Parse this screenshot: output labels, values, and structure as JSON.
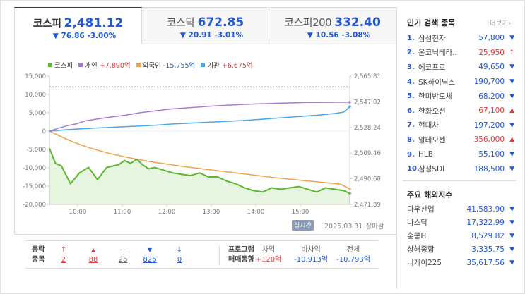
{
  "tabs": [
    {
      "name": "코스피",
      "value": "2,481.12",
      "change": "▼ 76.86 -3.00%"
    },
    {
      "name": "코스닥",
      "value": "672.85",
      "change": "▼ 20.91 -3.01%"
    },
    {
      "name": "코스피200",
      "value": "332.40",
      "change": "▼ 10.56 -3.08%"
    }
  ],
  "legend": [
    {
      "name": "코스피",
      "amount": "",
      "color": "#5cb82e"
    },
    {
      "name": "개인",
      "amount": "+7,890억",
      "color": "#a87bd0"
    },
    {
      "name": "외국인",
      "amount": "-15,755억",
      "color": "#f0a04b"
    },
    {
      "name": "기관",
      "amount": "+6,675억",
      "color": "#49a6e8"
    }
  ],
  "chart_data": {
    "type": "line",
    "x_labels": [
      "10:00",
      "11:00",
      "12:00",
      "13:00",
      "14:00",
      "15:00"
    ],
    "left_axis_ticks": [
      "15,000",
      "10,000",
      "5,000",
      "0",
      "-5,000",
      "-10,000",
      "-15,000",
      "-20,000"
    ],
    "right_axis_ticks": [
      "2,565.81",
      "2,547.02",
      "2,528.24",
      "2,509.46",
      "2,490.68",
      "2,471.89"
    ],
    "left_ylim": [
      -20000,
      15000
    ],
    "right_ylim": [
      2471.89,
      2565.81
    ],
    "reference_line": 2557.98,
    "series": [
      {
        "name": "개인",
        "color": "#a87bd0",
        "axis": "left",
        "x": [
          0,
          0.03,
          0.06,
          0.09,
          0.12,
          0.16,
          0.2,
          0.25,
          0.3,
          0.35,
          0.4,
          0.45,
          0.5,
          0.55,
          0.6,
          0.65,
          0.7,
          0.75,
          0.8,
          0.85,
          0.9,
          0.95,
          1.0
        ],
        "values": [
          0,
          800,
          1500,
          2000,
          2800,
          3300,
          3800,
          4300,
          5000,
          5500,
          6000,
          6300,
          6600,
          6900,
          7100,
          7300,
          7450,
          7600,
          7700,
          7800,
          7850,
          7880,
          7890
        ]
      },
      {
        "name": "외국인",
        "color": "#f0a04b",
        "axis": "left",
        "x": [
          0,
          0.03,
          0.06,
          0.09,
          0.12,
          0.16,
          0.2,
          0.25,
          0.3,
          0.35,
          0.4,
          0.45,
          0.5,
          0.55,
          0.6,
          0.65,
          0.7,
          0.75,
          0.8,
          0.85,
          0.9,
          0.95,
          0.97,
          1.0
        ],
        "values": [
          0,
          -1200,
          -2300,
          -3300,
          -4200,
          -5200,
          -6100,
          -7000,
          -7800,
          -8500,
          -9100,
          -9700,
          -10200,
          -10700,
          -11200,
          -11700,
          -12200,
          -12700,
          -13100,
          -13500,
          -13900,
          -14300,
          -14500,
          -15755
        ]
      },
      {
        "name": "기관",
        "color": "#49a6e8",
        "axis": "left",
        "x": [
          0,
          0.03,
          0.06,
          0.1,
          0.15,
          0.2,
          0.25,
          0.3,
          0.35,
          0.4,
          0.45,
          0.5,
          0.55,
          0.6,
          0.65,
          0.7,
          0.75,
          0.8,
          0.85,
          0.9,
          0.95,
          0.98,
          1.0
        ],
        "values": [
          0,
          200,
          400,
          600,
          800,
          1000,
          1200,
          1400,
          1600,
          1900,
          2100,
          2300,
          2500,
          2700,
          2900,
          3200,
          3500,
          3800,
          4100,
          4400,
          4800,
          5200,
          6675
        ]
      },
      {
        "name": "코스피",
        "color": "#5cb82e",
        "axis": "right",
        "fill": true,
        "x": [
          0,
          0.02,
          0.04,
          0.07,
          0.1,
          0.13,
          0.16,
          0.19,
          0.21,
          0.23,
          0.25,
          0.27,
          0.29,
          0.31,
          0.33,
          0.35,
          0.38,
          0.41,
          0.44,
          0.47,
          0.5,
          0.53,
          0.56,
          0.59,
          0.62,
          0.65,
          0.68,
          0.71,
          0.74,
          0.77,
          0.8,
          0.83,
          0.86,
          0.89,
          0.92,
          0.95,
          0.98,
          1.0
        ],
        "values": [
          2513,
          2502,
          2500,
          2487,
          2495,
          2499,
          2490,
          2499,
          2500,
          2501,
          2504,
          2502,
          2505,
          2501,
          2498,
          2499,
          2497,
          2495,
          2494,
          2493,
          2495,
          2492,
          2492,
          2489,
          2487,
          2484,
          2482,
          2481,
          2484,
          2483,
          2484,
          2485,
          2483,
          2481,
          2484,
          2483,
          2482,
          2480
        ]
      }
    ]
  },
  "timestamp": {
    "badge": "실시간",
    "date": "2025.03.31",
    "status": "장마감"
  },
  "breadth": {
    "label1": "등락",
    "label2": "종목",
    "items": [
      {
        "icon": "↑",
        "value": "2",
        "color": "red"
      },
      {
        "icon": "▲",
        "value": "88",
        "color": "red"
      },
      {
        "icon": "—",
        "value": "26",
        "color": "gray"
      },
      {
        "icon": "▼",
        "value": "826",
        "color": "blue"
      },
      {
        "icon": "↓",
        "value": "0",
        "color": "blue"
      }
    ]
  },
  "program": {
    "label1": "프로그램",
    "label2": "매매동향",
    "cols": [
      {
        "head": "차익",
        "value": "+120억",
        "color": "red"
      },
      {
        "head": "비차익",
        "value": "-10,913억",
        "color": "blue"
      },
      {
        "head": "전체",
        "value": "-10,793억",
        "color": "blue"
      }
    ]
  },
  "popular": {
    "title": "인기 검색 종목",
    "more": "더보기",
    "items": [
      {
        "rank": "1.",
        "name": "삼성전자",
        "price": "57,800",
        "dir": "▼"
      },
      {
        "rank": "2.",
        "name": "온코닉테라..",
        "price": "25,950",
        "dir": "↑"
      },
      {
        "rank": "3.",
        "name": "에코프로",
        "price": "49,650",
        "dir": "▼"
      },
      {
        "rank": "4.",
        "name": "SK하이닉스",
        "price": "190,700",
        "dir": "▼"
      },
      {
        "rank": "5.",
        "name": "한미반도체",
        "price": "68,200",
        "dir": "▼"
      },
      {
        "rank": "6.",
        "name": "한화오션",
        "price": "67,100",
        "dir": "▲"
      },
      {
        "rank": "7.",
        "name": "현대차",
        "price": "197,200",
        "dir": "▼"
      },
      {
        "rank": "8.",
        "name": "알테오젠",
        "price": "356,000",
        "dir": "▲"
      },
      {
        "rank": "9.",
        "name": "HLB",
        "price": "55,100",
        "dir": "▼"
      },
      {
        "rank": "10.",
        "name": "삼성SDI",
        "price": "188,500",
        "dir": "▼"
      }
    ]
  },
  "overseas": {
    "title": "주요 해외지수",
    "items": [
      {
        "name": "다우산업",
        "value": "41,583.90",
        "dir": "▼"
      },
      {
        "name": "나스닥",
        "value": "17,322.99",
        "dir": "▼"
      },
      {
        "name": "홍콩H",
        "value": "8,529.82",
        "dir": "▼"
      },
      {
        "name": "상해종합",
        "value": "3,335.75",
        "dir": "▼"
      },
      {
        "name": "니케이225",
        "value": "35,617.56",
        "dir": "▼"
      }
    ]
  }
}
